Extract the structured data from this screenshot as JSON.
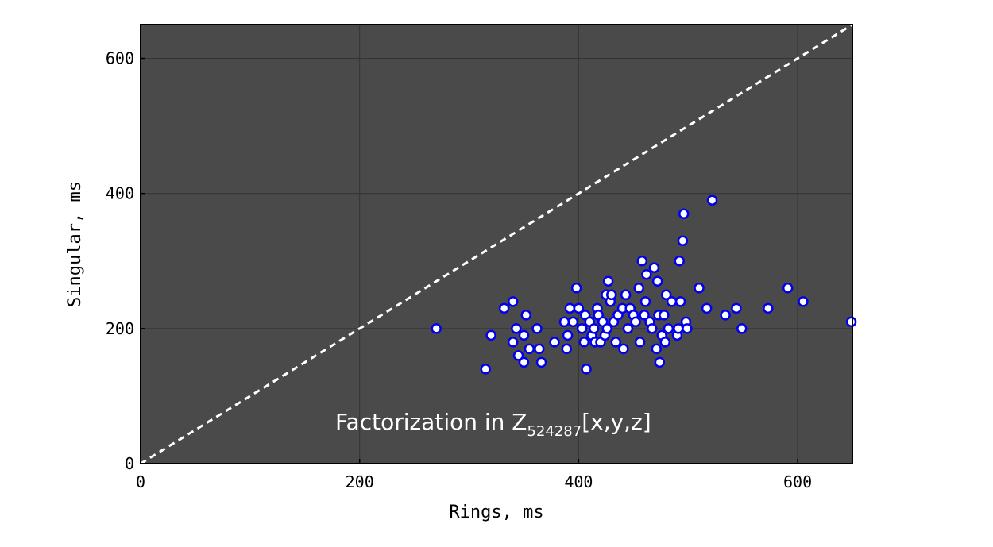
{
  "chart_data": {
    "type": "scatter",
    "xlabel": "Rings, ms",
    "ylabel": "Singular, ms",
    "xlim": [
      0,
      650
    ],
    "ylim": [
      0,
      650
    ],
    "xticks": [
      0,
      200,
      400,
      600
    ],
    "yticks": [
      0,
      200,
      400,
      600
    ],
    "grid": true,
    "annotation": {
      "prefix": "Factorization in Z",
      "subscript": "524287",
      "suffix": "[x,y,z]"
    },
    "reference_line": {
      "style": "dashed",
      "color": "#ffffff",
      "from": [
        0,
        0
      ],
      "to": [
        650,
        650
      ]
    },
    "colors": {
      "plot_background": "#4a4a4a",
      "grid": "#333333",
      "marker_fill": "#ffffff",
      "marker_edge": "#0000ee"
    },
    "series": [
      {
        "points": [
          [
            270,
            200
          ],
          [
            315,
            140
          ],
          [
            320,
            190
          ],
          [
            332,
            230
          ],
          [
            340,
            240
          ],
          [
            340,
            180
          ],
          [
            343,
            200
          ],
          [
            345,
            160
          ],
          [
            350,
            190
          ],
          [
            350,
            150
          ],
          [
            352,
            220
          ],
          [
            355,
            170
          ],
          [
            362,
            200
          ],
          [
            364,
            170
          ],
          [
            366,
            150
          ],
          [
            378,
            180
          ],
          [
            387,
            210
          ],
          [
            389,
            170
          ],
          [
            390,
            190
          ],
          [
            392,
            230
          ],
          [
            395,
            210
          ],
          [
            398,
            260
          ],
          [
            400,
            230
          ],
          [
            403,
            200
          ],
          [
            405,
            180
          ],
          [
            406,
            220
          ],
          [
            407,
            140
          ],
          [
            410,
            210
          ],
          [
            412,
            190
          ],
          [
            414,
            200
          ],
          [
            415,
            180
          ],
          [
            417,
            230
          ],
          [
            418,
            220
          ],
          [
            420,
            180
          ],
          [
            422,
            210
          ],
          [
            424,
            190
          ],
          [
            425,
            250
          ],
          [
            426,
            200
          ],
          [
            427,
            270
          ],
          [
            429,
            240
          ],
          [
            430,
            250
          ],
          [
            432,
            210
          ],
          [
            434,
            180
          ],
          [
            436,
            220
          ],
          [
            440,
            230
          ],
          [
            441,
            170
          ],
          [
            443,
            250
          ],
          [
            445,
            200
          ],
          [
            447,
            230
          ],
          [
            450,
            220
          ],
          [
            452,
            210
          ],
          [
            455,
            260
          ],
          [
            456,
            180
          ],
          [
            458,
            300
          ],
          [
            460,
            220
          ],
          [
            461,
            240
          ],
          [
            462,
            280
          ],
          [
            465,
            210
          ],
          [
            467,
            200
          ],
          [
            469,
            290
          ],
          [
            471,
            170
          ],
          [
            472,
            270
          ],
          [
            473,
            220
          ],
          [
            474,
            150
          ],
          [
            476,
            190
          ],
          [
            478,
            220
          ],
          [
            479,
            180
          ],
          [
            480,
            250
          ],
          [
            482,
            200
          ],
          [
            485,
            240
          ],
          [
            490,
            190
          ],
          [
            491,
            200
          ],
          [
            492,
            300
          ],
          [
            493,
            240
          ],
          [
            495,
            330
          ],
          [
            496,
            370
          ],
          [
            498,
            210
          ],
          [
            499,
            200
          ],
          [
            510,
            260
          ],
          [
            517,
            230
          ],
          [
            522,
            390
          ],
          [
            534,
            220
          ],
          [
            544,
            230
          ],
          [
            549,
            200
          ],
          [
            573,
            230
          ],
          [
            591,
            260
          ],
          [
            605,
            240
          ],
          [
            649,
            210
          ]
        ]
      }
    ]
  }
}
